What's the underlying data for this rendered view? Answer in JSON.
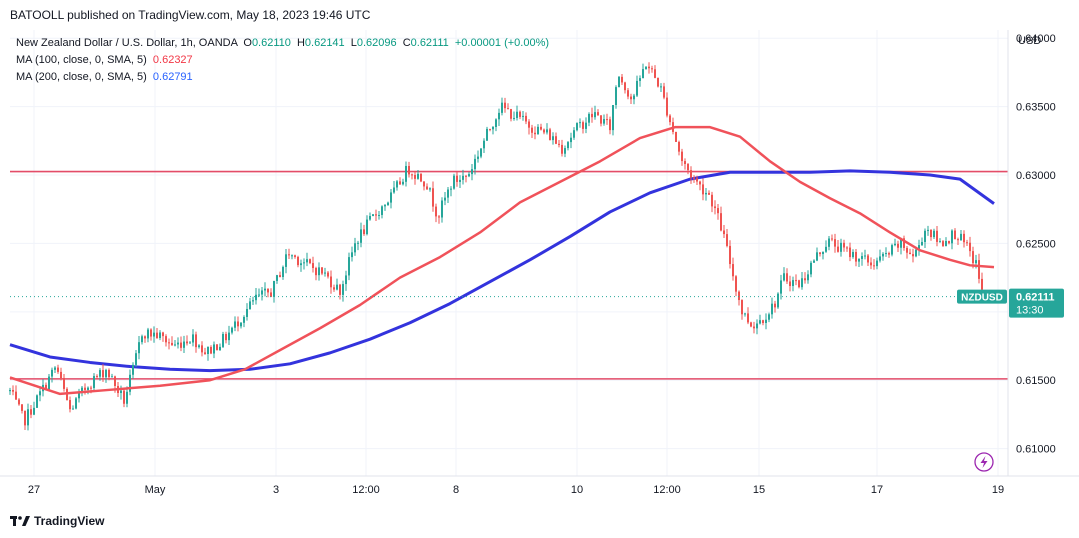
{
  "publisher": "BATOOLL published on TradingView.com, May 18, 2023 19:46 UTC",
  "legend": {
    "title": "New Zealand Dollar / U.S. Dollar, 1h, OANDA",
    "o_key": "O",
    "o_val": "0.62110",
    "h_key": "H",
    "h_val": "0.62141",
    "l_key": "L",
    "l_val": "0.62096",
    "c_key": "C",
    "c_val": "0.62111",
    "change": "+0.00001 (+0.00%)",
    "ma100_label": "MA (100, close, 0, SMA, 5)",
    "ma100_value": "0.62327",
    "ma200_label": "MA (200, close, 0, SMA, 5)",
    "ma200_value": "0.62791"
  },
  "footer": {
    "brand": "TradingView"
  },
  "colors": {
    "up": "#26a69a",
    "down": "#ef5350",
    "ma100": "#f0525a",
    "ma200": "#3333dd",
    "hline": "#e34c68",
    "accent": "#9c27b0"
  },
  "chart_data": {
    "type": "candlestick",
    "symbol": "NZDUSD",
    "y_unit": "USD",
    "ylim": [
      0.608,
      0.6406
    ],
    "y_ticks": [
      0.61,
      0.615,
      0.62,
      0.625,
      0.63,
      0.635,
      0.64
    ],
    "y_tick_labels": [
      "0.61000",
      "0.61500",
      "0.62000",
      "0.62500",
      "0.63000",
      "0.63500",
      "0.64000"
    ],
    "x_tick_labels": [
      "27",
      "May",
      "3",
      "12:00",
      "8",
      "10",
      "12:00",
      "15",
      "17",
      "19"
    ],
    "last_price": {
      "label": "NZDUSD",
      "value": "0.62111",
      "countdown": "13:30",
      "price": 0.62111
    },
    "horizontal_lines": [
      0.63025,
      0.6151
    ],
    "close_path": [
      [
        0,
        0.6142
      ],
      [
        14,
        0.612
      ],
      [
        30,
        0.614
      ],
      [
        46,
        0.616
      ],
      [
        60,
        0.6128
      ],
      [
        78,
        0.6147
      ],
      [
        96,
        0.6158
      ],
      [
        114,
        0.6135
      ],
      [
        124,
        0.616
      ],
      [
        132,
        0.6185
      ],
      [
        148,
        0.6183
      ],
      [
        164,
        0.6175
      ],
      [
        182,
        0.6182
      ],
      [
        196,
        0.617
      ],
      [
        214,
        0.618
      ],
      [
        230,
        0.6195
      ],
      [
        246,
        0.621
      ],
      [
        262,
        0.6215
      ],
      [
        278,
        0.6243
      ],
      [
        296,
        0.6235
      ],
      [
        314,
        0.6228
      ],
      [
        330,
        0.6215
      ],
      [
        346,
        0.6252
      ],
      [
        364,
        0.627
      ],
      [
        382,
        0.6285
      ],
      [
        398,
        0.6305
      ],
      [
        416,
        0.6295
      ],
      [
        428,
        0.627
      ],
      [
        442,
        0.6295
      ],
      [
        458,
        0.63
      ],
      [
        474,
        0.6325
      ],
      [
        490,
        0.635
      ],
      [
        506,
        0.6343
      ],
      [
        522,
        0.6335
      ],
      [
        538,
        0.633
      ],
      [
        552,
        0.632
      ],
      [
        568,
        0.6335
      ],
      [
        584,
        0.6345
      ],
      [
        600,
        0.6335
      ],
      [
        608,
        0.6375
      ],
      [
        622,
        0.6355
      ],
      [
        636,
        0.6382
      ],
      [
        650,
        0.6365
      ],
      [
        660,
        0.634
      ],
      [
        672,
        0.631
      ],
      [
        686,
        0.6295
      ],
      [
        700,
        0.6285
      ],
      [
        712,
        0.626
      ],
      [
        722,
        0.623
      ],
      [
        732,
        0.62
      ],
      [
        742,
        0.619
      ],
      [
        752,
        0.6195
      ],
      [
        764,
        0.6205
      ],
      [
        774,
        0.6225
      ],
      [
        790,
        0.622
      ],
      [
        804,
        0.6238
      ],
      [
        818,
        0.6252
      ],
      [
        834,
        0.6245
      ],
      [
        848,
        0.624
      ],
      [
        862,
        0.6235
      ],
      [
        878,
        0.6242
      ],
      [
        890,
        0.625
      ],
      [
        904,
        0.624
      ],
      [
        916,
        0.6262
      ],
      [
        930,
        0.625
      ],
      [
        946,
        0.6258
      ],
      [
        958,
        0.6245
      ],
      [
        966,
        0.6235
      ],
      [
        972,
        0.6215
      ]
    ],
    "ma100": [
      [
        0,
        0.6152
      ],
      [
        50,
        0.614
      ],
      [
        100,
        0.6143
      ],
      [
        150,
        0.6146
      ],
      [
        200,
        0.615
      ],
      [
        235,
        0.6158
      ],
      [
        270,
        0.6172
      ],
      [
        310,
        0.6188
      ],
      [
        350,
        0.6205
      ],
      [
        390,
        0.6225
      ],
      [
        430,
        0.624
      ],
      [
        470,
        0.6258
      ],
      [
        510,
        0.628
      ],
      [
        550,
        0.6295
      ],
      [
        590,
        0.631
      ],
      [
        630,
        0.6327
      ],
      [
        665,
        0.6335
      ],
      [
        700,
        0.6335
      ],
      [
        730,
        0.6328
      ],
      [
        760,
        0.631
      ],
      [
        790,
        0.6295
      ],
      [
        820,
        0.6283
      ],
      [
        850,
        0.6272
      ],
      [
        880,
        0.6258
      ],
      [
        910,
        0.6245
      ],
      [
        940,
        0.6238
      ],
      [
        960,
        0.6234
      ],
      [
        984,
        0.62327
      ]
    ],
    "ma200": [
      [
        0,
        0.6176
      ],
      [
        40,
        0.6167
      ],
      [
        80,
        0.6163
      ],
      [
        120,
        0.616
      ],
      [
        160,
        0.6158
      ],
      [
        200,
        0.6157
      ],
      [
        240,
        0.6158
      ],
      [
        280,
        0.6162
      ],
      [
        320,
        0.617
      ],
      [
        360,
        0.618
      ],
      [
        400,
        0.6192
      ],
      [
        440,
        0.6206
      ],
      [
        480,
        0.6222
      ],
      [
        520,
        0.6238
      ],
      [
        560,
        0.6255
      ],
      [
        600,
        0.6273
      ],
      [
        640,
        0.6287
      ],
      [
        680,
        0.6297
      ],
      [
        720,
        0.6302
      ],
      [
        760,
        0.6302
      ],
      [
        800,
        0.6302
      ],
      [
        840,
        0.6303
      ],
      [
        880,
        0.6302
      ],
      [
        920,
        0.63
      ],
      [
        950,
        0.6297
      ],
      [
        984,
        0.62791
      ]
    ]
  }
}
